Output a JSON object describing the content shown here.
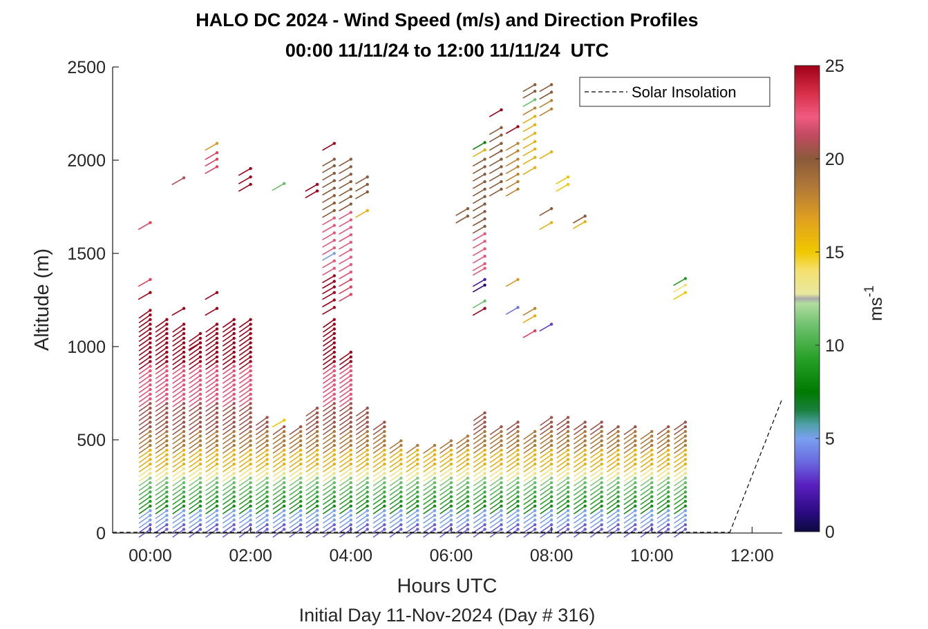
{
  "chart_data": {
    "type": "scatter",
    "title": "HALO DC 2024 - Wind Speed (m/s) and Direction Profiles",
    "subtitle": "00:00 11/11/24 to 12:00 11/11/24  UTC",
    "xlabel": "Hours UTC",
    "ylabel": "Altitude (m)",
    "day_label": "Initial Day 11-Nov-2024 (Day # 316)",
    "xlim": [
      -0.75,
      12.6
    ],
    "ylim": [
      0,
      2500
    ],
    "x_ticks": [
      0,
      2,
      4,
      6,
      8,
      10,
      12
    ],
    "x_tick_labels": [
      "00:00",
      "02:00",
      "04:00",
      "06:00",
      "08:00",
      "10:00",
      "12:00"
    ],
    "y_ticks": [
      0,
      500,
      1000,
      1500,
      2000,
      2500
    ],
    "y_tick_labels": [
      "0",
      "500",
      "1000",
      "1500",
      "2000",
      "2500"
    ],
    "colorbar": {
      "range": [
        0,
        25
      ],
      "ticks": [
        0,
        5,
        10,
        15,
        20,
        25
      ],
      "tick_labels": [
        "0",
        "5",
        "10",
        "15",
        "20",
        "25"
      ],
      "label": "ms",
      "label_exponent": "-1"
    },
    "legend": {
      "position": "top-right",
      "entries": [
        "Solar Insolation"
      ]
    },
    "solar_insolation": {
      "x": [
        11.55,
        12.6
      ],
      "y": [
        0,
        720
      ],
      "style": "dashed"
    },
    "profiles": [
      {
        "time": 0.0,
        "top": 1200,
        "extra": [
          [
            1360,
            23
          ],
          [
            1665,
            23
          ],
          [
            1290,
            25
          ]
        ]
      },
      {
        "time": 0.33,
        "top": 1150,
        "extra": []
      },
      {
        "time": 0.67,
        "top": 1120,
        "extra": [
          [
            1205,
            25
          ],
          [
            1905,
            21
          ]
        ]
      },
      {
        "time": 1.0,
        "top": 1090,
        "extra": [
          [
            1020,
            25
          ]
        ]
      },
      {
        "time": 1.33,
        "top": 1130,
        "extra": [
          [
            1205,
            25
          ],
          [
            1290,
            25
          ],
          [
            2040,
            23
          ],
          [
            2005,
            23
          ],
          [
            1965,
            23
          ],
          [
            2090,
            17
          ]
        ]
      },
      {
        "time": 1.67,
        "top": 1145,
        "extra": []
      },
      {
        "time": 2.0,
        "top": 1160,
        "extra": [
          [
            1955,
            25
          ],
          [
            1910,
            25
          ],
          [
            1870,
            25
          ]
        ]
      },
      {
        "time": 2.33,
        "top": 620,
        "extra": []
      },
      {
        "time": 2.67,
        "top": 590,
        "extra": [
          [
            1875,
            11
          ],
          [
            605,
            15
          ]
        ]
      },
      {
        "time": 3.0,
        "top": 585,
        "extra": []
      },
      {
        "time": 3.33,
        "top": 680,
        "extra": [
          [
            1870,
            25
          ],
          [
            1835,
            25
          ]
        ]
      },
      {
        "time": 3.67,
        "top": 1160,
        "extra": [
          [
            2090,
            25
          ],
          [
            2005,
            20
          ],
          [
            1970,
            20
          ],
          [
            1930,
            20
          ],
          [
            1890,
            20
          ],
          [
            1850,
            20
          ],
          [
            1810,
            20
          ],
          [
            1770,
            20
          ],
          [
            1730,
            20
          ],
          [
            1690,
            22
          ],
          [
            1650,
            22
          ],
          [
            1610,
            22
          ],
          [
            1570,
            22
          ],
          [
            1530,
            22
          ],
          [
            1500,
            5
          ],
          [
            1460,
            22
          ],
          [
            1420,
            22
          ],
          [
            1380,
            25
          ],
          [
            1350,
            25
          ],
          [
            1320,
            25
          ],
          [
            1290,
            25
          ],
          [
            1250,
            25
          ],
          [
            1210,
            25
          ]
        ]
      },
      {
        "time": 4.0,
        "top": 980,
        "extra": [
          [
            2005,
            20
          ],
          [
            1965,
            20
          ],
          [
            1925,
            20
          ],
          [
            1885,
            20
          ],
          [
            1845,
            20
          ],
          [
            1805,
            20
          ],
          [
            1765,
            20
          ],
          [
            1720,
            22
          ],
          [
            1680,
            22
          ],
          [
            1640,
            22
          ],
          [
            1600,
            22
          ],
          [
            1560,
            22
          ],
          [
            1520,
            22
          ],
          [
            1480,
            22
          ],
          [
            1440,
            22
          ],
          [
            1400,
            22
          ],
          [
            1360,
            23
          ],
          [
            1320,
            23
          ],
          [
            1280,
            23
          ]
        ]
      },
      {
        "time": 4.33,
        "top": 680,
        "extra": [
          [
            1910,
            20
          ],
          [
            1870,
            20
          ],
          [
            1830,
            20
          ],
          [
            1730,
            16
          ]
        ]
      },
      {
        "time": 4.67,
        "top": 610,
        "extra": []
      },
      {
        "time": 5.0,
        "top": 510,
        "extra": []
      },
      {
        "time": 5.33,
        "top": 480,
        "extra": []
      },
      {
        "time": 5.67,
        "top": 470,
        "extra": []
      },
      {
        "time": 6.0,
        "top": 500,
        "extra": []
      },
      {
        "time": 6.33,
        "top": 540,
        "extra": [
          [
            1740,
            20
          ],
          [
            1700,
            20
          ]
        ]
      },
      {
        "time": 6.67,
        "top": 650,
        "extra": [
          [
            2095,
            8
          ],
          [
            2055,
            16
          ],
          [
            2005,
            20
          ],
          [
            1965,
            20
          ],
          [
            1925,
            20
          ],
          [
            1885,
            20
          ],
          [
            1845,
            20
          ],
          [
            1805,
            20
          ],
          [
            1765,
            20
          ],
          [
            1725,
            20
          ],
          [
            1685,
            20
          ],
          [
            1645,
            20
          ],
          [
            1605,
            22
          ],
          [
            1565,
            22
          ],
          [
            1525,
            22
          ],
          [
            1485,
            22
          ],
          [
            1445,
            22
          ],
          [
            1420,
            22
          ],
          [
            1360,
            2
          ],
          [
            1330,
            1
          ],
          [
            1245,
            11
          ],
          [
            1205,
            25
          ]
        ]
      },
      {
        "time": 7.0,
        "top": 590,
        "extra": [
          [
            2175,
            20
          ],
          [
            2135,
            20
          ],
          [
            2090,
            20
          ],
          [
            2050,
            20
          ],
          [
            2005,
            20
          ],
          [
            1965,
            20
          ],
          [
            1925,
            20
          ],
          [
            1885,
            20
          ],
          [
            1845,
            20
          ],
          [
            2270,
            25
          ]
        ]
      },
      {
        "time": 7.33,
        "top": 610,
        "extra": [
          [
            2090,
            18
          ],
          [
            2050,
            18
          ],
          [
            2005,
            18
          ],
          [
            1965,
            18
          ],
          [
            1925,
            18
          ],
          [
            1885,
            18
          ],
          [
            1845,
            18
          ],
          [
            2180,
            25
          ],
          [
            1360,
            17
          ],
          [
            1210,
            4
          ]
        ]
      },
      {
        "time": 7.67,
        "top": 560,
        "extra": [
          [
            2405,
            20
          ],
          [
            2370,
            20
          ],
          [
            2325,
            11
          ],
          [
            2280,
            18
          ],
          [
            2235,
            16
          ],
          [
            2190,
            16
          ],
          [
            2145,
            16
          ],
          [
            2100,
            16
          ],
          [
            2060,
            16
          ],
          [
            2015,
            16
          ],
          [
            1960,
            16
          ],
          [
            1205,
            18
          ],
          [
            1165,
            16
          ],
          [
            1085,
            23
          ]
        ]
      },
      {
        "time": 8.0,
        "top": 640,
        "extra": [
          [
            2405,
            20
          ],
          [
            2365,
            20
          ],
          [
            2320,
            18
          ],
          [
            2275,
            18
          ],
          [
            2045,
            16
          ],
          [
            1740,
            20
          ],
          [
            1665,
            16
          ],
          [
            1120,
            3
          ]
        ]
      },
      {
        "time": 8.33,
        "top": 620,
        "extra": [
          [
            1910,
            15
          ],
          [
            1870,
            15
          ]
        ]
      },
      {
        "time": 8.67,
        "top": 610,
        "extra": [
          [
            1700,
            20
          ],
          [
            1670,
            16
          ]
        ]
      },
      {
        "time": 9.0,
        "top": 600,
        "extra": []
      },
      {
        "time": 9.33,
        "top": 580,
        "extra": []
      },
      {
        "time": 9.67,
        "top": 570,
        "extra": []
      },
      {
        "time": 10.0,
        "top": 550,
        "extra": []
      },
      {
        "time": 10.33,
        "top": 570,
        "extra": []
      },
      {
        "time": 10.67,
        "top": 610,
        "extra": [
          [
            1365,
            9
          ],
          [
            1330,
            14
          ],
          [
            1290,
            15
          ]
        ]
      }
    ]
  },
  "legend_label": "Solar Insolation"
}
